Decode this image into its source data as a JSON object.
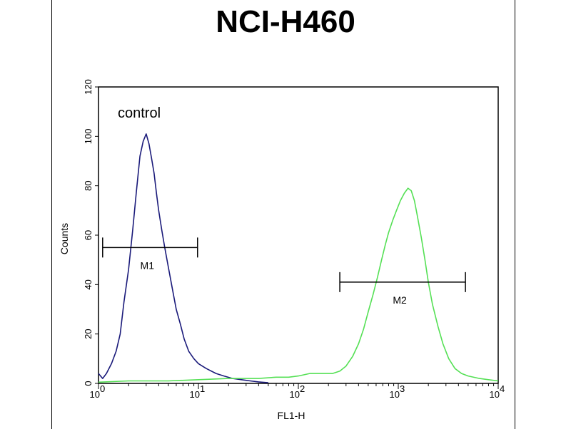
{
  "chart_data": {
    "type": "line",
    "title": "NCI-H460",
    "xlabel": "FL1-H",
    "ylabel": "Counts",
    "x_scale": "log",
    "xlim": [
      1,
      10000
    ],
    "ylim": [
      0,
      120
    ],
    "x_ticks": [
      {
        "value": 1,
        "base": "10",
        "exp": "0"
      },
      {
        "value": 10,
        "base": "10",
        "exp": "1"
      },
      {
        "value": 100,
        "base": "10",
        "exp": "2"
      },
      {
        "value": 1000,
        "base": "10",
        "exp": "3"
      },
      {
        "value": 10000,
        "base": "10",
        "exp": "4"
      }
    ],
    "y_ticks": [
      "0",
      "20",
      "40",
      "60",
      "80",
      "100",
      "120"
    ],
    "annotation_text": "control",
    "series": [
      {
        "name": "control",
        "color": "#1a1a7a",
        "x": [
          1.0,
          1.1,
          1.2,
          1.35,
          1.5,
          1.65,
          1.8,
          2.0,
          2.2,
          2.4,
          2.6,
          2.8,
          3.0,
          3.2,
          3.4,
          3.6,
          3.8,
          4.0,
          4.3,
          4.6,
          5.0,
          5.5,
          6.0,
          6.6,
          7.2,
          8.0,
          9.0,
          10,
          12,
          15,
          18,
          22,
          27,
          33,
          40,
          50
        ],
        "y": [
          4,
          2,
          4,
          8,
          13,
          20,
          33,
          46,
          62,
          78,
          92,
          98,
          101,
          97,
          91,
          85,
          77,
          70,
          62,
          55,
          47,
          38,
          30,
          24,
          18,
          13,
          10,
          8,
          6,
          4,
          3,
          2,
          1.5,
          1,
          0.6,
          0.3
        ]
      },
      {
        "name": "",
        "color": "#55e055",
        "x": [
          1,
          2,
          5,
          10,
          20,
          40,
          60,
          80,
          100,
          130,
          170,
          220,
          260,
          300,
          350,
          400,
          450,
          500,
          560,
          620,
          680,
          740,
          800,
          880,
          960,
          1050,
          1150,
          1250,
          1350,
          1450,
          1550,
          1700,
          1850,
          2000,
          2200,
          2500,
          2800,
          3200,
          3700,
          4300,
          5000,
          6500,
          8000,
          10000
        ],
        "y": [
          0.5,
          1,
          1,
          1.5,
          2,
          2,
          2.5,
          2.5,
          3,
          4,
          4,
          4,
          5,
          7,
          11,
          16,
          22,
          29,
          36,
          43,
          50,
          56,
          61,
          66,
          70,
          74,
          77,
          79,
          78,
          74,
          68,
          59,
          50,
          41,
          32,
          23,
          16,
          10,
          6,
          4,
          3,
          2,
          1.5,
          1
        ]
      }
    ],
    "markers": [
      {
        "label": "M1",
        "x_start": 1.1,
        "x_end": 9.8,
        "y": 55
      },
      {
        "label": "M2",
        "x_start": 260,
        "x_end": 4700,
        "y": 41
      }
    ]
  }
}
